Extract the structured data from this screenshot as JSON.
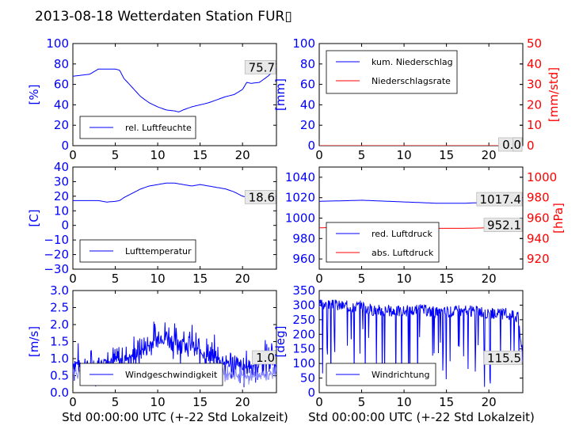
{
  "title": "2013-08-18 Wetterdaten Station FUR▯",
  "xlabel": "Std 00:00:00 UTC (+-22 Std Lokalzeit)",
  "colors": {
    "blue": "#0000ff",
    "red": "#ff0000",
    "lightblue": "#8888ff"
  },
  "chart_data": [
    {
      "id": "humidity",
      "type": "line",
      "ylabel": "[%]",
      "xlim": [
        0,
        24
      ],
      "ylim": [
        0,
        100
      ],
      "xticks": [
        "0",
        "5",
        "10",
        "15",
        "20"
      ],
      "yticks": [
        "0",
        "20",
        "40",
        "60",
        "80",
        "100"
      ],
      "legend": "bottom-left",
      "last_label": "75.7",
      "series": [
        {
          "name": "rel. Luftfeuchte",
          "x": [
            0,
            1,
            2,
            3,
            4,
            5,
            5.5,
            6,
            7,
            8,
            9,
            10,
            11,
            12,
            12.5,
            13,
            14,
            15,
            16,
            17,
            18,
            19,
            20,
            20.5,
            21,
            22,
            23,
            23.5,
            24
          ],
          "y": [
            68,
            69,
            70,
            75,
            75,
            75,
            74,
            66,
            57,
            48,
            42,
            38,
            35,
            34,
            33,
            35,
            38,
            40,
            42,
            45,
            48,
            50,
            55,
            62,
            61,
            62,
            68,
            72,
            75.7
          ]
        }
      ]
    },
    {
      "id": "precip",
      "type": "line",
      "ylabel": "[mm]",
      "ylabel_right": "[mm/std]",
      "xlim": [
        0,
        24
      ],
      "ylim": [
        0,
        100
      ],
      "ylim_right": [
        0,
        50
      ],
      "xticks": [
        "0",
        "5",
        "10",
        "15",
        "20"
      ],
      "yticks": [
        "0",
        "20",
        "40",
        "60",
        "80",
        "100"
      ],
      "yticks_right": [
        "0",
        "10",
        "20",
        "30",
        "40",
        "50"
      ],
      "legend": "top-left",
      "last_label": "0.0",
      "last_label_right": "0",
      "series": [
        {
          "name": "kum. Niederschlag",
          "x": [
            0,
            24
          ],
          "y": [
            0,
            0
          ]
        },
        {
          "name": "Niederschlagsrate",
          "x": [
            0,
            24
          ],
          "y": [
            0,
            0
          ],
          "axis": "right"
        }
      ]
    },
    {
      "id": "temperature",
      "type": "line",
      "ylabel": "[C]",
      "xlim": [
        0,
        24
      ],
      "ylim": [
        -30,
        40
      ],
      "xticks": [
        "0",
        "5",
        "10",
        "15",
        "20"
      ],
      "yticks": [
        "−30",
        "−20",
        "−10",
        "0",
        "10",
        "20",
        "30",
        "40"
      ],
      "legend": "bottom-left",
      "last_label": "18.6",
      "series": [
        {
          "name": "Lufttemperatur",
          "x": [
            0,
            1,
            2,
            3,
            4,
            5,
            5.5,
            6,
            7,
            8,
            9,
            10,
            11,
            12,
            13,
            14,
            15,
            16,
            17,
            18,
            19,
            20,
            21,
            22,
            23,
            24
          ],
          "y": [
            17,
            17,
            17,
            17,
            16,
            16.5,
            17,
            19,
            22,
            25,
            27,
            28,
            29,
            29,
            28,
            27,
            28,
            27,
            26,
            25,
            23,
            20,
            19,
            18.5,
            18.6,
            18.6
          ]
        }
      ]
    },
    {
      "id": "pressure",
      "type": "line",
      "ylabel": "[hPa]",
      "xlim": [
        0,
        24
      ],
      "ylim": [
        950,
        1050
      ],
      "ylim_right": [
        910,
        1010
      ],
      "xticks": [
        "0",
        "5",
        "10",
        "15",
        "20"
      ],
      "yticks": [
        "960",
        "980",
        "1000",
        "1020",
        "1040"
      ],
      "yticks_right": [
        "920",
        "940",
        "960",
        "980",
        "1000"
      ],
      "legend": "bottom-left",
      "last_label": "1017.4",
      "last_label_right": "952.1",
      "series": [
        {
          "name": "red. Luftdruck",
          "x": [
            0,
            3,
            5,
            8,
            11,
            14,
            17,
            20,
            22,
            24
          ],
          "y": [
            1016.5,
            1017,
            1017.5,
            1016.5,
            1015.5,
            1014.5,
            1014.5,
            1015.5,
            1016.5,
            1017.4
          ]
        },
        {
          "name": "abs. Luftdruck",
          "x": [
            0,
            3,
            5,
            8,
            11,
            14,
            17,
            20,
            22,
            24
          ],
          "y": [
            950.5,
            951,
            951.5,
            951,
            950.5,
            950,
            950,
            950.5,
            951.5,
            952.1
          ],
          "axis": "right"
        }
      ]
    },
    {
      "id": "wind",
      "type": "line",
      "ylabel": "[m/s]",
      "xlim": [
        0,
        24
      ],
      "ylim": [
        0,
        3
      ],
      "xticks": [
        "0",
        "5",
        "10",
        "15",
        "20"
      ],
      "yticks": [
        "0.0",
        "0.5",
        "1.0",
        "1.5",
        "2.0",
        "2.5",
        "3.0"
      ],
      "legend": "bottom-left",
      "last_label": "1.0",
      "series": [
        {
          "name": "Windgeschwindigkeit",
          "x": [
            0,
            1,
            2,
            3,
            4,
            5,
            6,
            7,
            8,
            9,
            10,
            11,
            12,
            13,
            14,
            15,
            16,
            17,
            18,
            19,
            20,
            21,
            22,
            23,
            24
          ],
          "y": [
            0.9,
            0.8,
            0.7,
            0.8,
            1.0,
            0.9,
            1.0,
            1.1,
            1.2,
            1.4,
            1.6,
            1.7,
            1.5,
            1.5,
            1.4,
            1.2,
            1.1,
            1.0,
            0.9,
            0.8,
            0.7,
            0.8,
            0.9,
            1.0,
            1.0
          ],
          "noise": 0.9,
          "seed": 7
        },
        {
          "x": [
            0,
            3,
            5,
            8,
            11,
            14,
            17,
            20,
            22,
            24
          ],
          "y": [
            0.6,
            0.6,
            0.5,
            0.5,
            0.6,
            0.6,
            0.6,
            0.5,
            0.5,
            0.6
          ],
          "noise": 0.4,
          "seed": 11,
          "color": "lightblue"
        }
      ]
    },
    {
      "id": "direction",
      "type": "line",
      "ylabel": "[deg]",
      "xlim": [
        0,
        24
      ],
      "ylim": [
        0,
        350
      ],
      "xticks": [
        "0",
        "5",
        "10",
        "15",
        "20"
      ],
      "yticks": [
        "0",
        "50",
        "100",
        "150",
        "200",
        "250",
        "300",
        "350"
      ],
      "legend": "bottom-left",
      "last_label": "115.5",
      "series": [
        {
          "name": "Windrichtung",
          "x": [
            0,
            2,
            4,
            5,
            6,
            8,
            10,
            12,
            14,
            16,
            18,
            20,
            22,
            23.5,
            24
          ],
          "y": [
            300,
            300,
            295,
            300,
            285,
            280,
            280,
            285,
            275,
            280,
            280,
            270,
            270,
            260,
            115.5
          ],
          "noise": 40,
          "seed": 3,
          "spikes": 0.08
        }
      ]
    }
  ]
}
